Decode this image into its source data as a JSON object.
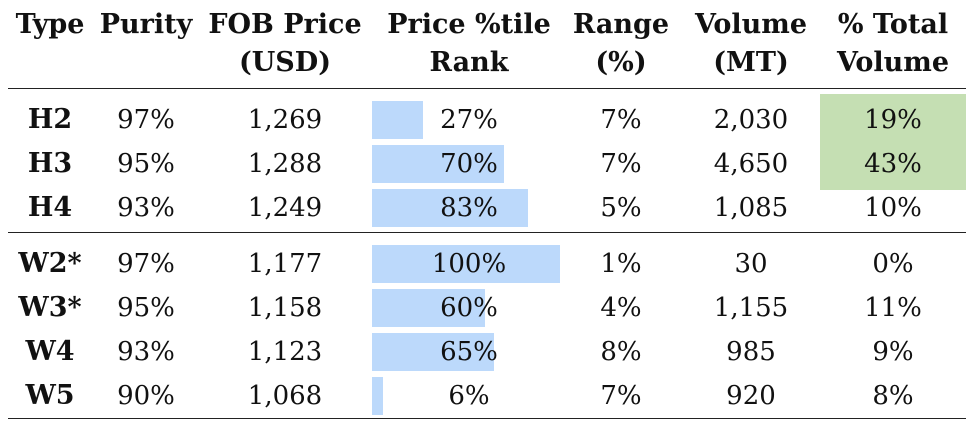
{
  "headers": {
    "type": "Type",
    "purity": "Purity",
    "fob_1": "FOB Price",
    "fob_2": "(USD)",
    "pct_1": "Price %tile",
    "pct_2": "Rank",
    "range_1": "Range",
    "range_2": "(%)",
    "vol_1": "Volume",
    "vol_2": "(MT)",
    "tot_1": "% Total",
    "tot_2": "Volume"
  },
  "highlight_color": "#c5dfb3",
  "bar_color": "#bcd9fb",
  "rows": [
    {
      "type": "H2",
      "purity": "97%",
      "fob": "1,269",
      "pct": "27%",
      "pct_value": 27,
      "range": "7%",
      "volume": "2,030",
      "total": "19%",
      "highlight": true
    },
    {
      "type": "H3",
      "purity": "95%",
      "fob": "1,288",
      "pct": "70%",
      "pct_value": 70,
      "range": "7%",
      "volume": "4,650",
      "total": "43%",
      "highlight": true
    },
    {
      "type": "H4",
      "purity": "93%",
      "fob": "1,249",
      "pct": "83%",
      "pct_value": 83,
      "range": "5%",
      "volume": "1,085",
      "total": "10%",
      "highlight": false
    },
    {
      "type": "W2*",
      "purity": "97%",
      "fob": "1,177",
      "pct": "100%",
      "pct_value": 100,
      "range": "1%",
      "volume": "30",
      "total": "0%",
      "highlight": false
    },
    {
      "type": "W3*",
      "purity": "95%",
      "fob": "1,158",
      "pct": "60%",
      "pct_value": 60,
      "range": "4%",
      "volume": "1,155",
      "total": "11%",
      "highlight": false
    },
    {
      "type": "W4",
      "purity": "93%",
      "fob": "1,123",
      "pct": "65%",
      "pct_value": 65,
      "range": "8%",
      "volume": "985",
      "total": "9%",
      "highlight": false
    },
    {
      "type": "W5",
      "purity": "90%",
      "fob": "1,068",
      "pct": "6%",
      "pct_value": 6,
      "range": "7%",
      "volume": "920",
      "total": "8%",
      "highlight": false
    }
  ]
}
